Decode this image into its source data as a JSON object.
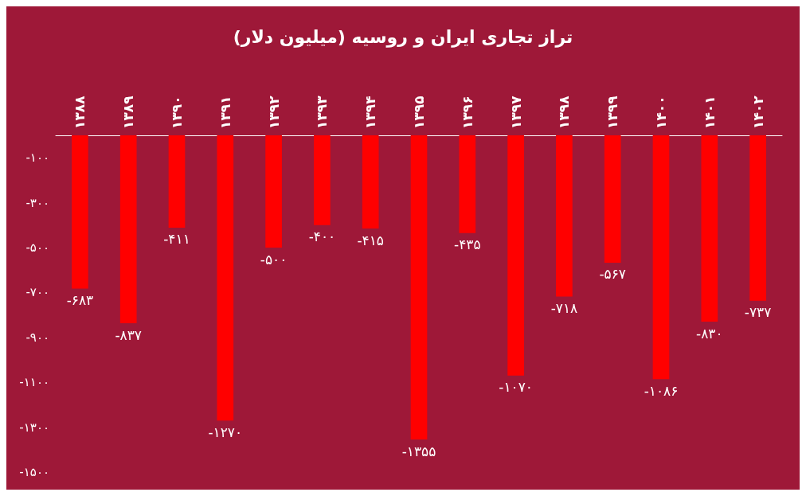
{
  "chart_data": {
    "type": "bar",
    "title": "تراز تجاری ایران و روسیه (میلیون دلار)",
    "categories": [
      "۱۳۸۸",
      "۱۳۸۹",
      "۱۳۹۰",
      "۱۳۹۱",
      "۱۳۹۲",
      "۱۳۹۳",
      "۱۳۹۴",
      "۱۳۹۵",
      "۱۳۹۶",
      "۱۳۹۷",
      "۱۳۹۸",
      "۱۳۹۹",
      "۱۴۰۰",
      "۱۴۰۱",
      "۱۴۰۲"
    ],
    "values": [
      -683,
      -837,
      -411,
      -1270,
      -500,
      -400,
      -415,
      -1355,
      -435,
      -1070,
      -718,
      -567,
      -1086,
      -830,
      -737
    ],
    "value_labels": [
      "-۶۸۳",
      "-۸۳۷",
      "-۴۱۱",
      "-۱۲۷۰",
      "-۵۰۰",
      "-۴۰۰",
      "-۴۱۵",
      "-۱۳۵۵",
      "-۴۳۵",
      "-۱۰۷۰",
      "-۷۱۸",
      "-۵۶۷",
      "-۱۰۸۶",
      "-۸۳۰",
      "-۷۳۷"
    ],
    "color": "#ff0000",
    "ylim": [
      -1500,
      0
    ],
    "yticks": [
      {
        "value": -100,
        "label": "-۱۰۰"
      },
      {
        "value": -300,
        "label": "-۳۰۰"
      },
      {
        "value": -500,
        "label": "-۵۰۰"
      },
      {
        "value": -700,
        "label": "-۷۰۰"
      },
      {
        "value": -900,
        "label": "-۹۰۰"
      },
      {
        "value": -1100,
        "label": "-۱۱۰۰"
      },
      {
        "value": -1300,
        "label": "-۱۳۰۰"
      },
      {
        "value": -1500,
        "label": "-۱۵۰۰"
      }
    ],
    "grid": false
  }
}
